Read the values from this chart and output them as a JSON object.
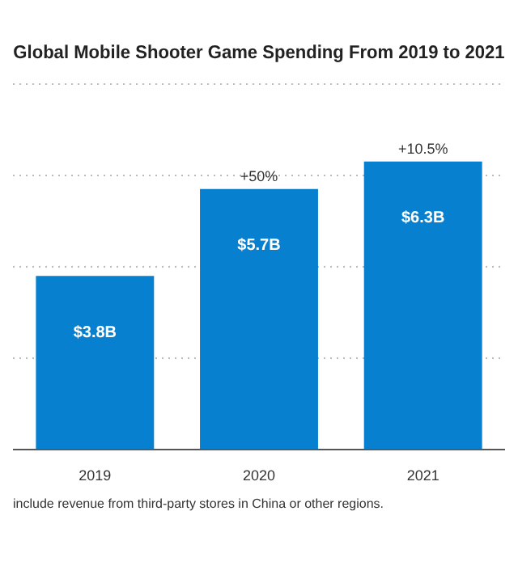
{
  "chart_data": {
    "type": "bar",
    "title": "Global Mobile Shooter Game Spending From 2019 to 2021",
    "categories": [
      "2019",
      "2020",
      "2021"
    ],
    "values": [
      3.8,
      5.7,
      6.3
    ],
    "color": "#0780d0",
    "value_labels": [
      "$3.8B",
      "$5.7B",
      "$6.3B"
    ],
    "ylim": [
      0,
      8
    ],
    "yticks": [
      {
        "value": 0,
        "label": null
      },
      {
        "value": 2,
        "label": null
      },
      {
        "value": 4,
        "label": null
      },
      {
        "value": 6,
        "label": null
      },
      {
        "value": 8,
        "label": null
      }
    ],
    "grid": "y",
    "tick_labels": "x",
    "annotations": [
      {
        "text": "+50%",
        "x": "2020",
        "y": 5.7
      },
      {
        "text": "+10.5%",
        "x": "2021",
        "y": 6.3
      },
      "include revenue from third-party stores in China or other regions."
    ]
  }
}
